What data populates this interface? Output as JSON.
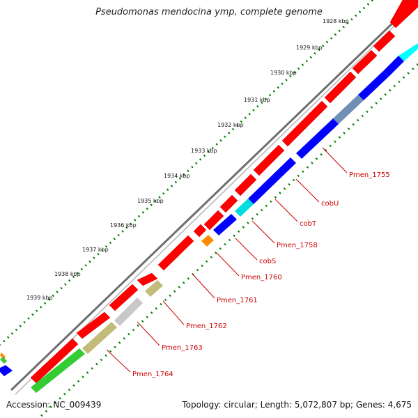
{
  "title": "Pseudomonas mendocina ymp, complete genome",
  "footer": {
    "accession": "Accession: NC_009439",
    "summary": "Topology: circular; Length: 5,072,807 bp; Genes: 4,675"
  },
  "scale_labels": [
    "1928 kbp",
    "1929 kbp",
    "1930 kbp",
    "1931 kbp",
    "1932 kbp",
    "1933 kbp",
    "1934 kbp",
    "1935 kbp",
    "1936 kbp",
    "1937 kbp",
    "1938 kbp",
    "1939 kbp"
  ],
  "gene_labels": [
    "Pmen_1755",
    "cobU",
    "cobT",
    "Pmen_1758",
    "cobS",
    "Pmen_1760",
    "Pmen_1761",
    "Pmen_1762",
    "Pmen_1763",
    "Pmen_1764"
  ],
  "colors": {
    "cds": "#ff0000",
    "backbone": "#808080",
    "gc_skew": "#008000",
    "label": "#cc0000",
    "cog_blue": "#0000ff",
    "cog_cyan": "#00ffff",
    "cog_steel": "#6f8fb5",
    "cog_orange": "#ff8c00",
    "cog_olive": "#c2bb7a",
    "cog_grey": "#c8c8c8",
    "cog_green": "#33cc33"
  }
}
